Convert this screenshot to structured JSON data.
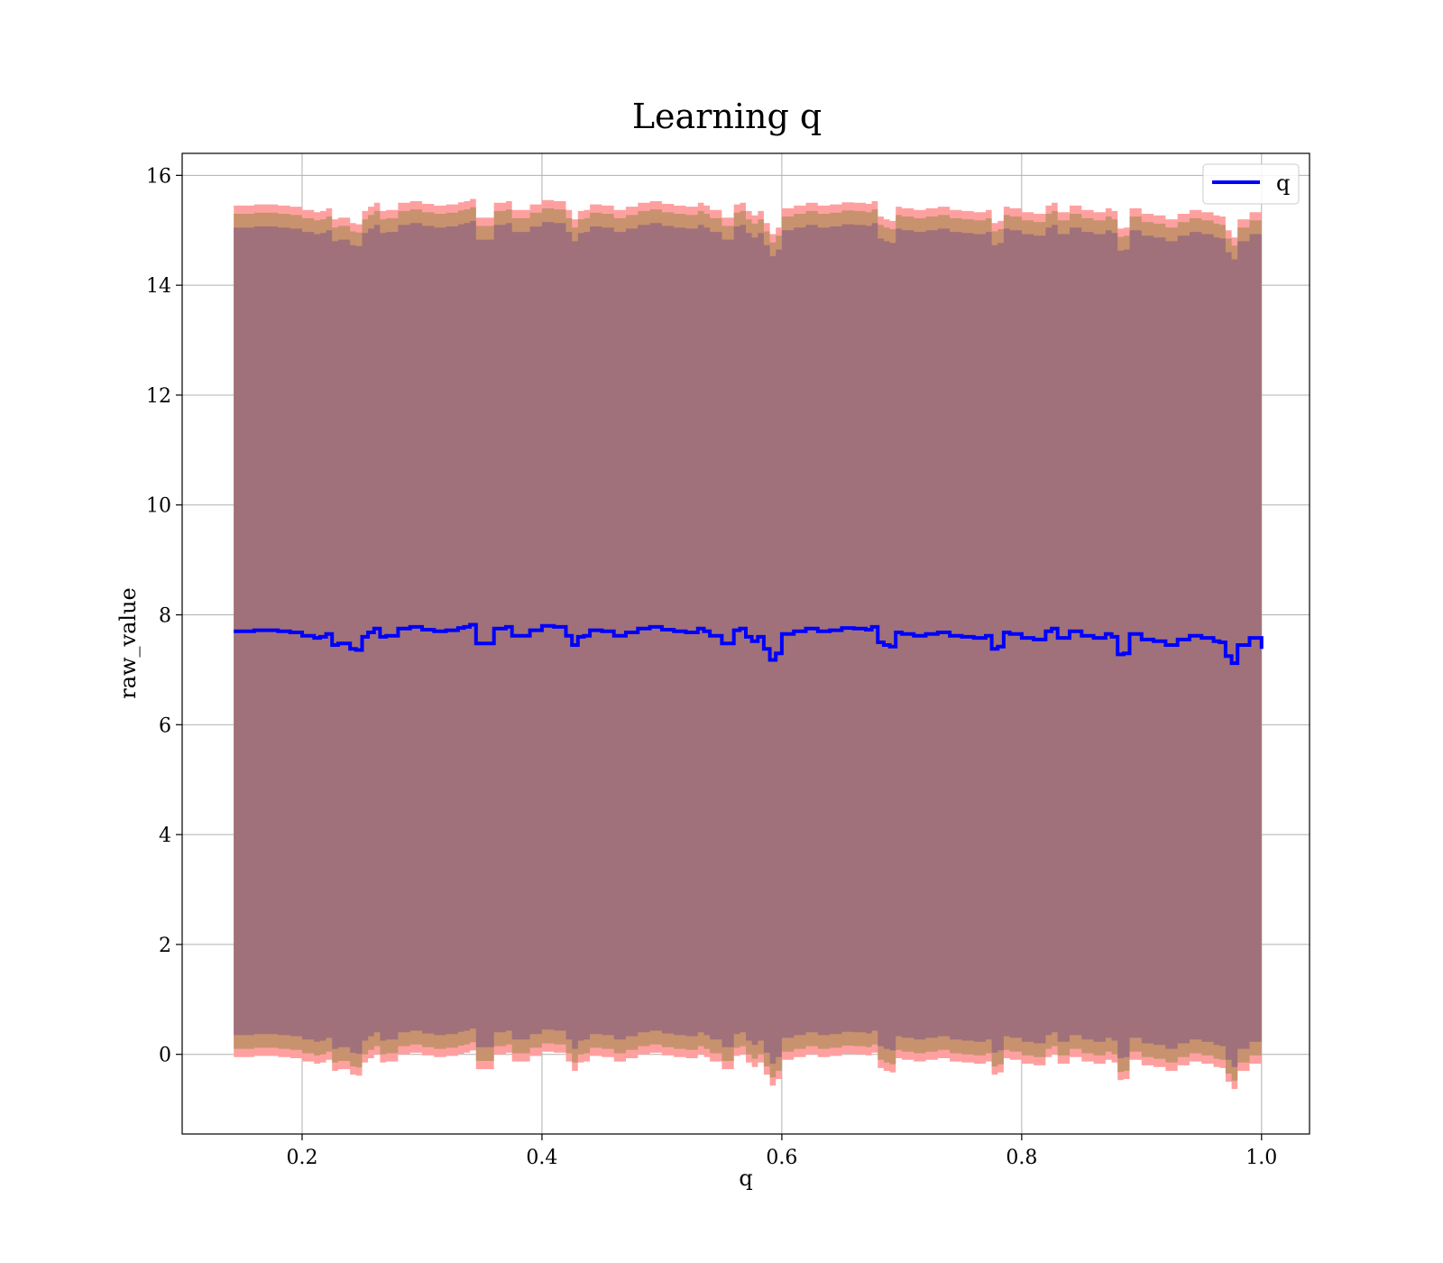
{
  "chart_data": {
    "type": "area",
    "title": "Learning q",
    "xlabel": "q",
    "ylabel": "raw_value",
    "xlim": [
      0.1,
      1.04
    ],
    "ylim": [
      -1.45,
      16.4
    ],
    "xticks": [
      0.2,
      0.4,
      0.6,
      0.8,
      1.0
    ],
    "xtick_labels": [
      "0.2",
      "0.4",
      "0.6",
      "0.8",
      "1.0"
    ],
    "yticks": [
      0,
      2,
      4,
      6,
      8,
      10,
      12,
      14,
      16
    ],
    "ytick_labels": [
      "0",
      "2",
      "4",
      "6",
      "8",
      "10",
      "12",
      "14",
      "16"
    ],
    "grid": true,
    "legend": {
      "position": "top-right",
      "entries": [
        "q"
      ]
    },
    "colors": {
      "line": "#0000ff",
      "band_outer": "#ffa0a0",
      "band_middle": "#c8926e",
      "band_inner": "#a0717a"
    },
    "bands": {
      "outer_halfwidth": 7.75,
      "middle_halfwidth": 7.6,
      "inner_halfwidth": 7.35
    },
    "series": [
      {
        "name": "q",
        "x": [
          0.143,
          0.16,
          0.18,
          0.19,
          0.2,
          0.21,
          0.215,
          0.22,
          0.225,
          0.23,
          0.24,
          0.245,
          0.25,
          0.255,
          0.26,
          0.265,
          0.27,
          0.28,
          0.29,
          0.3,
          0.31,
          0.32,
          0.33,
          0.335,
          0.34,
          0.345,
          0.355,
          0.36,
          0.37,
          0.375,
          0.38,
          0.39,
          0.4,
          0.41,
          0.42,
          0.425,
          0.43,
          0.435,
          0.44,
          0.45,
          0.46,
          0.47,
          0.48,
          0.49,
          0.5,
          0.51,
          0.52,
          0.53,
          0.535,
          0.54,
          0.55,
          0.56,
          0.565,
          0.57,
          0.575,
          0.58,
          0.585,
          0.59,
          0.595,
          0.6,
          0.61,
          0.62,
          0.63,
          0.64,
          0.65,
          0.66,
          0.67,
          0.675,
          0.68,
          0.685,
          0.69,
          0.695,
          0.7,
          0.71,
          0.72,
          0.73,
          0.74,
          0.75,
          0.76,
          0.77,
          0.775,
          0.78,
          0.785,
          0.79,
          0.8,
          0.81,
          0.82,
          0.825,
          0.83,
          0.84,
          0.85,
          0.86,
          0.87,
          0.875,
          0.88,
          0.885,
          0.89,
          0.9,
          0.91,
          0.92,
          0.93,
          0.94,
          0.95,
          0.96,
          0.965,
          0.97,
          0.975,
          0.98,
          0.99,
          1.0
        ],
        "y": [
          7.7,
          7.72,
          7.7,
          7.68,
          7.62,
          7.58,
          7.6,
          7.65,
          7.45,
          7.48,
          7.38,
          7.36,
          7.6,
          7.68,
          7.75,
          7.6,
          7.62,
          7.75,
          7.78,
          7.73,
          7.7,
          7.72,
          7.76,
          7.78,
          7.82,
          7.48,
          7.48,
          7.75,
          7.78,
          7.62,
          7.62,
          7.72,
          7.8,
          7.78,
          7.62,
          7.45,
          7.6,
          7.62,
          7.72,
          7.7,
          7.62,
          7.68,
          7.75,
          7.78,
          7.73,
          7.7,
          7.68,
          7.75,
          7.7,
          7.62,
          7.48,
          7.72,
          7.75,
          7.6,
          7.52,
          7.6,
          7.38,
          7.18,
          7.3,
          7.65,
          7.7,
          7.75,
          7.7,
          7.72,
          7.76,
          7.75,
          7.73,
          7.78,
          7.5,
          7.45,
          7.42,
          7.68,
          7.65,
          7.62,
          7.65,
          7.68,
          7.62,
          7.6,
          7.58,
          7.62,
          7.38,
          7.42,
          7.68,
          7.65,
          7.58,
          7.55,
          7.7,
          7.75,
          7.58,
          7.7,
          7.62,
          7.58,
          7.65,
          7.6,
          7.28,
          7.3,
          7.65,
          7.55,
          7.52,
          7.45,
          7.55,
          7.62,
          7.58,
          7.52,
          7.5,
          7.25,
          7.12,
          7.45,
          7.58,
          7.38
        ]
      }
    ]
  }
}
